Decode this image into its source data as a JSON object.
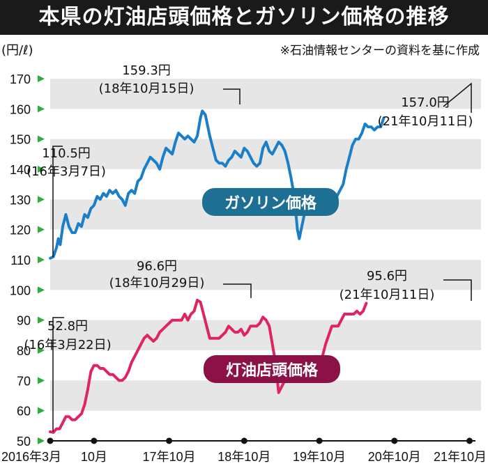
{
  "title": "本県の灯油店頭価格とガソリン価格の推移",
  "source_note": "※石油情報センターの資料を基に作成",
  "colors": {
    "gasoline": "#1a7ec8",
    "kerosene": "#e0245e",
    "gasoline_badge": "#1e6f94",
    "kerosene_badge": "#8c1147",
    "band": "#e6e6e6",
    "tick_marker": "#2fae3c"
  },
  "chart_data": {
    "type": "line",
    "unit_label": "(円/ℓ)",
    "ylim": [
      50,
      170
    ],
    "y_ticks": [
      170,
      160,
      150,
      140,
      130,
      120,
      110,
      100,
      90,
      80,
      70,
      60,
      50
    ],
    "x_labels": [
      {
        "text": "2016年3月",
        "x": 0
      },
      {
        "text": "10月",
        "x": 7
      },
      {
        "text": "17年10月",
        "x": 19
      },
      {
        "text": "18年10月",
        "x": 31
      },
      {
        "text": "19年10月",
        "x": 43
      },
      {
        "text": "20年10月",
        "x": 55
      },
      {
        "text": "21年10月",
        "x": 67
      }
    ],
    "x_range": [
      0,
      67.5
    ],
    "series": [
      {
        "name": "ガソリン価格",
        "key": "gasoline",
        "points": [
          [
            0,
            110.5
          ],
          [
            0.5,
            111
          ],
          [
            1,
            114
          ],
          [
            1.3,
            117
          ],
          [
            1.6,
            115
          ],
          [
            2,
            121
          ],
          [
            2.5,
            125
          ],
          [
            3,
            121
          ],
          [
            3.5,
            119
          ],
          [
            4,
            119
          ],
          [
            4.5,
            122
          ],
          [
            5,
            121
          ],
          [
            5.5,
            125
          ],
          [
            6,
            124
          ],
          [
            6.5,
            127
          ],
          [
            7,
            128
          ],
          [
            7.5,
            131
          ],
          [
            8,
            130
          ],
          [
            8.5,
            132
          ],
          [
            9,
            131
          ],
          [
            9.5,
            133
          ],
          [
            10,
            132
          ],
          [
            10.5,
            133
          ],
          [
            11,
            131
          ],
          [
            11.5,
            130
          ],
          [
            12,
            128
          ],
          [
            12.5,
            132
          ],
          [
            13,
            133
          ],
          [
            13.5,
            132
          ],
          [
            14,
            136
          ],
          [
            14.5,
            137
          ],
          [
            15,
            140
          ],
          [
            15.5,
            142
          ],
          [
            16,
            144
          ],
          [
            16.5,
            143
          ],
          [
            17,
            142
          ],
          [
            17.5,
            140
          ],
          [
            18,
            144
          ],
          [
            18.5,
            147
          ],
          [
            19,
            146
          ],
          [
            19.5,
            145
          ],
          [
            20,
            149
          ],
          [
            20.5,
            152
          ],
          [
            21,
            151
          ],
          [
            21.5,
            150
          ],
          [
            22,
            151
          ],
          [
            22.5,
            150
          ],
          [
            23,
            149
          ],
          [
            23.5,
            151
          ],
          [
            24,
            157
          ],
          [
            24.3,
            159.3
          ],
          [
            24.8,
            158
          ],
          [
            25.5,
            151
          ],
          [
            26,
            147
          ],
          [
            26.5,
            143
          ],
          [
            27,
            142
          ],
          [
            27.5,
            142
          ],
          [
            28,
            141
          ],
          [
            28.5,
            143
          ],
          [
            29,
            144
          ],
          [
            29.5,
            146
          ],
          [
            30,
            145
          ],
          [
            30.5,
            144
          ],
          [
            31,
            147
          ],
          [
            31.5,
            146
          ],
          [
            32,
            144
          ],
          [
            32.5,
            142
          ],
          [
            33,
            141
          ],
          [
            33.5,
            142
          ],
          [
            34,
            147
          ],
          [
            34.5,
            149
          ],
          [
            35,
            146
          ],
          [
            35.5,
            145
          ],
          [
            36,
            147
          ],
          [
            36.5,
            149
          ],
          [
            37,
            148
          ],
          [
            37.5,
            146
          ],
          [
            38,
            142
          ],
          [
            38.5,
            137
          ],
          [
            39,
            131
          ],
          [
            39.5,
            120
          ],
          [
            39.8,
            117
          ],
          [
            40.3,
            122
          ],
          [
            40.8,
            127
          ],
          [
            41.3,
            129
          ],
          [
            41.8,
            129
          ],
          [
            42.3,
            131
          ],
          [
            42.8,
            129
          ],
          [
            43.3,
            131
          ],
          [
            43.8,
            129
          ],
          [
            44.3,
            129
          ],
          [
            44.8,
            128
          ],
          [
            45.3,
            129
          ],
          [
            45.8,
            131
          ],
          [
            46.3,
            133
          ],
          [
            46.8,
            135
          ],
          [
            47.3,
            140
          ],
          [
            47.8,
            144
          ],
          [
            48.3,
            148
          ],
          [
            48.8,
            150
          ],
          [
            49.3,
            150
          ],
          [
            49.8,
            152
          ],
          [
            50.3,
            155
          ],
          [
            50.8,
            154
          ],
          [
            51.3,
            154
          ],
          [
            51.8,
            153
          ],
          [
            52.3,
            154
          ],
          [
            52.8,
            154
          ],
          [
            53.3,
            157
          ]
        ]
      },
      {
        "name": "灯油店頭価格",
        "key": "kerosene",
        "points": [
          [
            0,
            53
          ],
          [
            0.5,
            52.8
          ],
          [
            1,
            54
          ],
          [
            1.5,
            54
          ],
          [
            2,
            56
          ],
          [
            2.5,
            58
          ],
          [
            3,
            58
          ],
          [
            3.5,
            57
          ],
          [
            4,
            57
          ],
          [
            4.5,
            58
          ],
          [
            5,
            59
          ],
          [
            5.5,
            62
          ],
          [
            6,
            67
          ],
          [
            6.5,
            73
          ],
          [
            7,
            75
          ],
          [
            7.5,
            75
          ],
          [
            8,
            74
          ],
          [
            8.5,
            74
          ],
          [
            9,
            73
          ],
          [
            9.5,
            72
          ],
          [
            10,
            72
          ],
          [
            10.5,
            71
          ],
          [
            11,
            70
          ],
          [
            11.5,
            70
          ],
          [
            12,
            71
          ],
          [
            12.5,
            73
          ],
          [
            13,
            76
          ],
          [
            13.5,
            78
          ],
          [
            14,
            80
          ],
          [
            14.5,
            82
          ],
          [
            15,
            84
          ],
          [
            15.5,
            85
          ],
          [
            16,
            84
          ],
          [
            16.5,
            83
          ],
          [
            17,
            84
          ],
          [
            17.5,
            86
          ],
          [
            18,
            87
          ],
          [
            18.5,
            88
          ],
          [
            19,
            89
          ],
          [
            19.5,
            90
          ],
          [
            20,
            90
          ],
          [
            20.5,
            90
          ],
          [
            21,
            90
          ],
          [
            21.5,
            92
          ],
          [
            22,
            90
          ],
          [
            22.5,
            92
          ],
          [
            23,
            93
          ],
          [
            23.5,
            96.6
          ],
          [
            24,
            96
          ],
          [
            24.5,
            92
          ],
          [
            25,
            88
          ],
          [
            25.5,
            84
          ],
          [
            26,
            84
          ],
          [
            26.5,
            84
          ],
          [
            27,
            84
          ],
          [
            27.5,
            85
          ],
          [
            28,
            86
          ],
          [
            28.5,
            88
          ],
          [
            29,
            87
          ],
          [
            29.5,
            86
          ],
          [
            30,
            86
          ],
          [
            30.5,
            87
          ],
          [
            31,
            85
          ],
          [
            31.5,
            86
          ],
          [
            32,
            88
          ],
          [
            32.5,
            88
          ],
          [
            33,
            88
          ],
          [
            33.5,
            89
          ],
          [
            34,
            91
          ],
          [
            34.5,
            90
          ],
          [
            35,
            88
          ],
          [
            35.5,
            82
          ],
          [
            36,
            76
          ],
          [
            36.5,
            66
          ],
          [
            37,
            68
          ],
          [
            37.5,
            70
          ],
          [
            38,
            70
          ],
          [
            38.5,
            72
          ],
          [
            39,
            74
          ],
          [
            39.5,
            74
          ],
          [
            40,
            73
          ],
          [
            40.5,
            73
          ],
          [
            41,
            73
          ],
          [
            41.5,
            72
          ],
          [
            42,
            72
          ],
          [
            42.5,
            73
          ],
          [
            43,
            76
          ],
          [
            43.5,
            78
          ],
          [
            44,
            82
          ],
          [
            44.5,
            85
          ],
          [
            45,
            88
          ],
          [
            45.5,
            88
          ],
          [
            46,
            88
          ],
          [
            46.5,
            90
          ],
          [
            47,
            92
          ],
          [
            47.5,
            92
          ],
          [
            48,
            92
          ],
          [
            48.5,
            92
          ],
          [
            49,
            93
          ],
          [
            49.5,
            92
          ],
          [
            50,
            93
          ],
          [
            50.5,
            95.6
          ]
        ]
      }
    ],
    "annotations": [
      {
        "series": "gasoline",
        "value": "110.5円",
        "date": "(16年3月7日)"
      },
      {
        "series": "gasoline",
        "value": "159.3円",
        "date": "(18年10月15日)"
      },
      {
        "series": "gasoline",
        "value": "157.0円",
        "date": "(21年10月11日)"
      },
      {
        "series": "kerosene",
        "value": "52.8円",
        "date": "(16年3月22日)"
      },
      {
        "series": "kerosene",
        "value": "96.6円",
        "date": "(18年10月29日)"
      },
      {
        "series": "kerosene",
        "value": "95.6円",
        "date": "(21年10月11日)"
      }
    ]
  }
}
